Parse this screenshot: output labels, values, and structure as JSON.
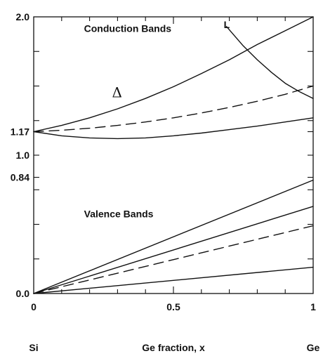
{
  "chart_data": {
    "type": "line",
    "title": "",
    "xlabel": "Ge fraction, x",
    "ylabel": "",
    "xlim": [
      0,
      1
    ],
    "ylim": [
      0,
      2.0
    ],
    "grid": false,
    "legend": "none",
    "x_ticks": [
      {
        "value": 0,
        "label": "0",
        "sublabel": "Si"
      },
      {
        "value": 0.5,
        "label": "0.5",
        "sublabel": ""
      },
      {
        "value": 1,
        "label": "1",
        "sublabel": "Ge"
      }
    ],
    "y_ticks": [
      {
        "value": 0.0,
        "label": "0.0"
      },
      {
        "value": 0.84,
        "label": "0.84"
      },
      {
        "value": 1.0,
        "label": "1.0"
      },
      {
        "value": 1.17,
        "label": "1.17"
      },
      {
        "value": 2.0,
        "label": "2.0"
      }
    ],
    "annotations": [
      {
        "text": "Conduction Bands",
        "kind": "label",
        "x": 0.18,
        "y": 1.89
      },
      {
        "text": "Valence Bands",
        "kind": "label",
        "x": 0.18,
        "y": 0.55
      },
      {
        "text": "Δ",
        "kind": "symbol",
        "x": 0.28,
        "y": 1.42
      },
      {
        "text": "L",
        "kind": "label",
        "x": 0.68,
        "y": 1.92
      }
    ],
    "series": [
      {
        "style": "solid",
        "x": [
          0,
          0.1,
          0.2,
          0.3,
          0.4,
          0.5,
          0.6,
          0.7,
          0.8,
          0.9,
          1.0
        ],
        "y": [
          1.17,
          1.215,
          1.27,
          1.335,
          1.41,
          1.495,
          1.59,
          1.69,
          1.8,
          1.9,
          2.0
        ]
      },
      {
        "style": "dashed",
        "x": [
          0,
          0.1,
          0.2,
          0.3,
          0.4,
          0.5,
          0.6,
          0.7,
          0.8,
          0.9,
          1.0
        ],
        "y": [
          1.17,
          1.18,
          1.195,
          1.215,
          1.24,
          1.27,
          1.305,
          1.345,
          1.39,
          1.44,
          1.5
        ]
      },
      {
        "style": "solid",
        "x": [
          0,
          0.1,
          0.2,
          0.3,
          0.4,
          0.5,
          0.6,
          0.7,
          0.8,
          0.9,
          1.0
        ],
        "y": [
          1.17,
          1.14,
          1.125,
          1.12,
          1.125,
          1.14,
          1.16,
          1.185,
          1.21,
          1.24,
          1.27
        ]
      },
      {
        "style": "solid",
        "name": "L",
        "x": [
          0.69,
          0.75,
          0.8,
          0.85,
          0.9,
          0.95,
          1.0
        ],
        "y": [
          1.93,
          1.79,
          1.69,
          1.6,
          1.52,
          1.46,
          1.41
        ]
      },
      {
        "style": "solid",
        "x": [
          0,
          1.0
        ],
        "y": [
          0,
          0.82
        ]
      },
      {
        "style": "solid",
        "x": [
          0,
          1.0
        ],
        "y": [
          0,
          0.63
        ]
      },
      {
        "style": "dashed",
        "x": [
          0,
          1.0
        ],
        "y": [
          0,
          0.49
        ]
      },
      {
        "style": "solid",
        "x": [
          0,
          1.0
        ],
        "y": [
          0,
          0.19
        ]
      }
    ]
  }
}
